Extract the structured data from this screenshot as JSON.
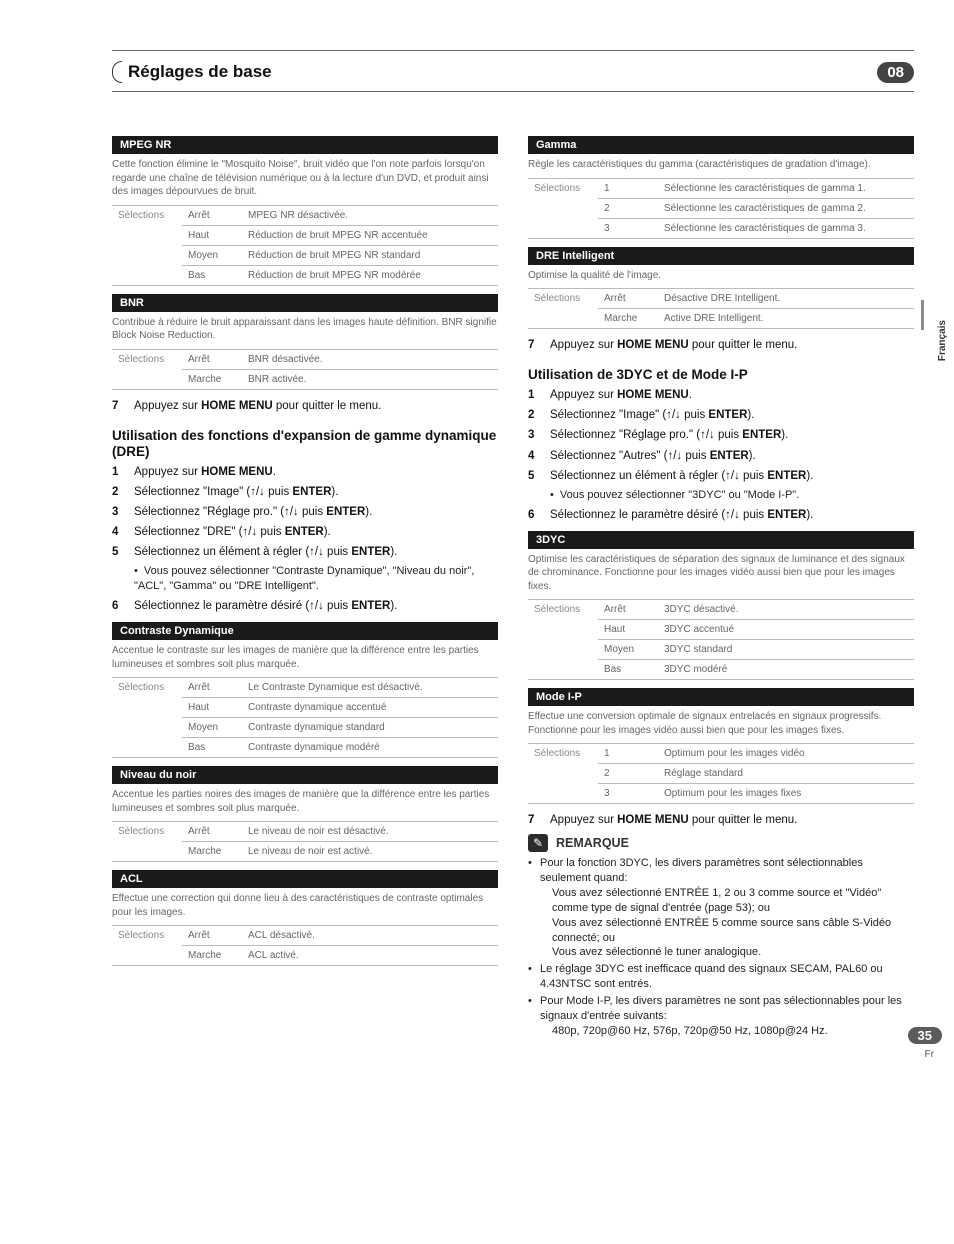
{
  "header": {
    "title": "Réglages de base",
    "chapter": "08"
  },
  "sidtab": "Français",
  "left": {
    "mpeg": {
      "bar": "MPEG NR",
      "desc": "Cette fonction élimine le \"Mosquito Noise\", bruit vidéo que l'on note parfois lorsqu'on regarde une chaîne de télévision numérique ou à la lecture d'un DVD, et produit ainsi des images dépourvues de bruit.",
      "lbl": "Sélections",
      "rows": [
        [
          "Arrêt",
          "MPEG NR désactivée."
        ],
        [
          "Haut",
          "Réduction de bruit MPEG NR accentuée"
        ],
        [
          "Moyen",
          "Réduction de bruit MPEG NR standard"
        ],
        [
          "Bas",
          "Réduction de bruit MPEG NR modérée"
        ]
      ]
    },
    "bnr": {
      "bar": "BNR",
      "desc": "Contribue à réduire le bruit apparaissant dans les images haute définition. BNR signifie Block Noise Reduction.",
      "lbl": "Sélections",
      "rows": [
        [
          "Arrêt",
          "BNR désactivée."
        ],
        [
          "Marche",
          "BNR activée."
        ]
      ]
    },
    "step7a": {
      "n": "7",
      "prefix": "Appuyez sur ",
      "bold": "HOME MENU",
      "suffix": " pour quitter le menu."
    },
    "sec1": "Utilisation des fonctions d'expansion de gamme dynamique (DRE)",
    "steps1": [
      {
        "n": "1",
        "prefix": "Appuyez sur ",
        "bold": "HOME MENU",
        "suffix": "."
      },
      {
        "n": "2",
        "prefix": "Sélectionnez \"Image\" (",
        "arrows": "↑/↓",
        "mid": " puis ",
        "bold": "ENTER",
        "suffix": ")."
      },
      {
        "n": "3",
        "prefix": "Sélectionnez \"Réglage pro.\" (",
        "arrows": "↑/↓",
        "mid": " puis ",
        "bold": "ENTER",
        "suffix": ")."
      },
      {
        "n": "4",
        "prefix": "Sélectionnez \"DRE\" (",
        "arrows": "↑/↓",
        "mid": " puis ",
        "bold": "ENTER",
        "suffix": ")."
      },
      {
        "n": "5",
        "prefix": "Sélectionnez un élément à régler (",
        "arrows": "↑/↓",
        "mid": " puis ",
        "bold": "ENTER",
        "suffix": ").",
        "sub": "Vous pouvez sélectionner \"Contraste Dynamique\", \"Niveau du noir\", \"ACL\", \"Gamma\" ou \"DRE Intelligent\"."
      },
      {
        "n": "6",
        "prefix": "Sélectionnez le paramètre désiré (",
        "arrows": "↑/↓",
        "mid": " puis ",
        "bold": "ENTER",
        "suffix": ")."
      }
    ],
    "contr": {
      "bar": "Contraste Dynamique",
      "desc": "Accentue le contraste sur les images de manière que la différence entre les parties lumineuses et sombres soit plus marquée.",
      "lbl": "Sélections",
      "rows": [
        [
          "Arrêt",
          "Le Contraste Dynamique est désactivé."
        ],
        [
          "Haut",
          "Contraste dynamique accentué"
        ],
        [
          "Moyen",
          "Contraste dynamique standard"
        ],
        [
          "Bas",
          "Contraste dynamique modéré"
        ]
      ]
    },
    "noir": {
      "bar": "Niveau du noir",
      "desc": "Accentue les parties noires des images de manière que la différence entre les parties lumineuses et sombres soit plus marquée.",
      "lbl": "Sélections",
      "rows": [
        [
          "Arrêt",
          "Le niveau de noir est désactivé."
        ],
        [
          "Marche",
          "Le niveau de noir est activé."
        ]
      ]
    },
    "acl": {
      "bar": "ACL",
      "desc": "Effectue une correction qui donne lieu à des caractéristiques de contraste optimales pour les images.",
      "lbl": "Sélections",
      "rows": [
        [
          "Arrêt",
          "ACL désactivé."
        ],
        [
          "Marche",
          "ACL activé."
        ]
      ]
    }
  },
  "right": {
    "gamma": {
      "bar": "Gamma",
      "desc": "Règle les caractéristiques du gamma (caractéristiques de gradation d'image).",
      "lbl": "Sélections",
      "rows": [
        [
          "1",
          "Sélectionne les caractéristiques de gamma 1."
        ],
        [
          "2",
          "Sélectionne les caractéristiques de gamma 2."
        ],
        [
          "3",
          "Sélectionne les caractéristiques de gamma 3."
        ]
      ]
    },
    "dre": {
      "bar": "DRE Intelligent",
      "desc": "Optimise la qualité de l'image.",
      "lbl": "Sélections",
      "rows": [
        [
          "Arrêt",
          "Désactive DRE Intelligent."
        ],
        [
          "Marche",
          "Active DRE Intelligent."
        ]
      ]
    },
    "step7b": {
      "n": "7",
      "prefix": "Appuyez sur ",
      "bold": "HOME MENU",
      "suffix": " pour quitter le menu."
    },
    "sec2": "Utilisation de 3DYC et de Mode I-P",
    "steps2": [
      {
        "n": "1",
        "prefix": "Appuyez sur ",
        "bold": "HOME MENU",
        "suffix": "."
      },
      {
        "n": "2",
        "prefix": "Sélectionnez \"Image\" (",
        "arrows": "↑/↓",
        "mid": " puis ",
        "bold": "ENTER",
        "suffix": ")."
      },
      {
        "n": "3",
        "prefix": "Sélectionnez \"Réglage pro.\" (",
        "arrows": "↑/↓",
        "mid": " puis ",
        "bold": "ENTER",
        "suffix": ")."
      },
      {
        "n": "4",
        "prefix": "Sélectionnez \"Autres\" (",
        "arrows": "↑/↓",
        "mid": " puis ",
        "bold": "ENTER",
        "suffix": ")."
      },
      {
        "n": "5",
        "prefix": "Sélectionnez un élément à régler (",
        "arrows": "↑/↓",
        "mid": " puis ",
        "bold": "ENTER",
        "suffix": ").",
        "sub": "Vous pouvez sélectionner \"3DYC\" ou \"Mode I-P\"."
      },
      {
        "n": "6",
        "prefix": "Sélectionnez le paramètre désiré (",
        "arrows": "↑/↓",
        "mid": " puis ",
        "bold": "ENTER",
        "suffix": ")."
      }
    ],
    "dyc": {
      "bar": "3DYC",
      "desc": "Optimise les caractéristiques de séparation des signaux de luminance et des signaux de chrominance. Fonctionne pour les images vidéo aussi bien que pour les images fixes.",
      "lbl": "Sélections",
      "rows": [
        [
          "Arrêt",
          "3DYC désactivé."
        ],
        [
          "Haut",
          "3DYC accentué"
        ],
        [
          "Moyen",
          "3DYC standard"
        ],
        [
          "Bas",
          "3DYC modéré"
        ]
      ]
    },
    "ip": {
      "bar": "Mode I-P",
      "desc": "Effectue une conversion optimale de signaux entrelacés en signaux progressifs. Fonctionne pour les images vidéo aussi bien que pour les images fixes.",
      "lbl": "Sélections",
      "rows": [
        [
          "1",
          "Optimum pour les images vidéo"
        ],
        [
          "2",
          "Réglage standard"
        ],
        [
          "3",
          "Optimum pour les images fixes"
        ]
      ]
    },
    "step7c": {
      "n": "7",
      "prefix": "Appuyez sur ",
      "bold": "HOME MENU",
      "suffix": " pour quitter le menu."
    },
    "remark": "REMARQUE",
    "notes": [
      "Pour la fonction 3DYC, les divers paramètres sont sélectionnables seulement quand:\nVous avez sélectionné ENTRÉE 1, 2 ou 3 comme source et \"Vidéo\" comme type de signal d'entrée (page 53); ou\nVous avez sélectionné ENTRÉE 5 comme source sans câble S-Vidéo connecté; ou\nVous avez sélectionné le tuner analogique.",
      "Le réglage 3DYC est inefficace quand des signaux SECAM, PAL60 ou 4.43NTSC sont entrés.",
      "Pour  Mode I-P, les divers paramètres ne sont pas sélectionnables pour les signaux d'entrée suivants:\n480p, 720p@60 Hz, 576p, 720p@50 Hz, 1080p@24 Hz."
    ]
  },
  "page": {
    "num": "35",
    "lang": "Fr"
  },
  "sidetab": "Français"
}
